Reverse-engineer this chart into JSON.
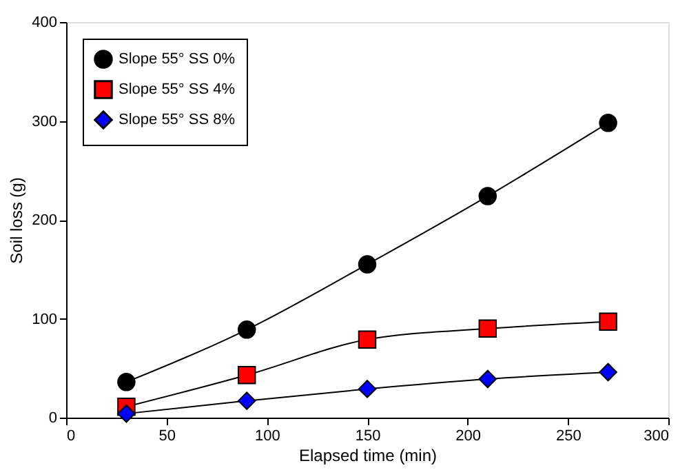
{
  "chart_data": {
    "type": "line",
    "xlabel": "Elapsed time (min)",
    "ylabel": "Soil loss (g)",
    "x": [
      30,
      90,
      150,
      210,
      270
    ],
    "series": [
      {
        "name": "Slope 55° SS 0%",
        "color": "#000000",
        "marker": "circle",
        "values": [
          36,
          89,
          155,
          224,
          298
        ]
      },
      {
        "name": "Slope 55° SS 4%",
        "color": "#ff0000",
        "marker": "square",
        "values": [
          11,
          43,
          79,
          90,
          97
        ]
      },
      {
        "name": "Slope 55° SS 8%",
        "color": "#0000ff",
        "marker": "diamond",
        "values": [
          4,
          17,
          29,
          39,
          46
        ]
      }
    ],
    "xlim": [
      0,
      300
    ],
    "xticks": [
      0,
      50,
      100,
      150,
      200,
      250,
      300
    ],
    "ylim": [
      0,
      400
    ],
    "yticks": [
      0,
      100,
      200,
      300,
      400
    ],
    "grid": false,
    "legend": "top left"
  }
}
